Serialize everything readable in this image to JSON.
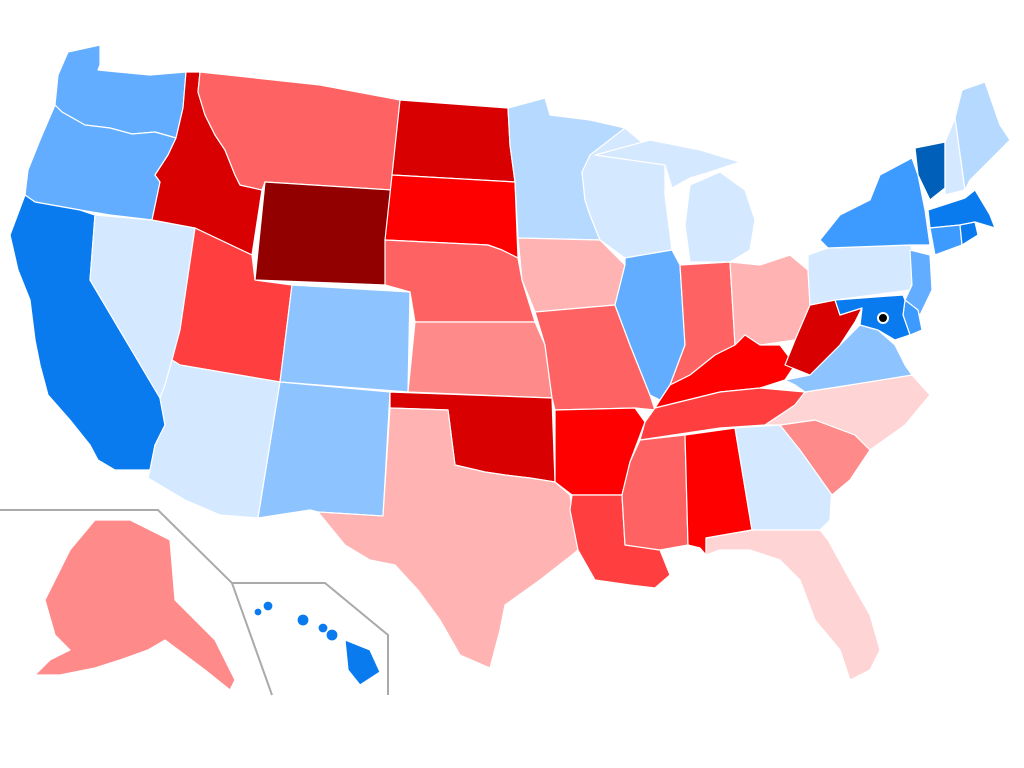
{
  "map": {
    "type": "us-states-choropleth",
    "palette": {
      "dark_blue": "#005fb8",
      "blue": "#0a7bee",
      "medium_blue": "#3d9aff",
      "light_blue": "#62adff",
      "pale_blue": "#8dc3ff",
      "very_pale_blue": "#b6d9ff",
      "faint_blue": "#d4e8ff",
      "faint_red": "#ffd4d4",
      "pale_red": "#ffb3b3",
      "light_red": "#ff8a8a",
      "medium_red": "#ff6262",
      "red": "#ff3f3f",
      "strong_red": "#ff0000",
      "dark_red": "#d80000",
      "darkest_red": "#920000",
      "border": "#ffffff",
      "inset_border": "#aaaaaa",
      "dc_marker": "#000000"
    },
    "states": [
      {
        "id": "WA",
        "color": "#62adff"
      },
      {
        "id": "OR",
        "color": "#62adff"
      },
      {
        "id": "CA",
        "color": "#0a7bee"
      },
      {
        "id": "NV",
        "color": "#d4e8ff"
      },
      {
        "id": "ID",
        "color": "#d80000"
      },
      {
        "id": "MT",
        "color": "#ff6262"
      },
      {
        "id": "WY",
        "color": "#920000"
      },
      {
        "id": "UT",
        "color": "#ff3f3f"
      },
      {
        "id": "AZ",
        "color": "#d4e8ff"
      },
      {
        "id": "CO",
        "color": "#8dc3ff"
      },
      {
        "id": "NM",
        "color": "#8dc3ff"
      },
      {
        "id": "ND",
        "color": "#d80000"
      },
      {
        "id": "SD",
        "color": "#ff0000"
      },
      {
        "id": "NE",
        "color": "#ff6262"
      },
      {
        "id": "KS",
        "color": "#ff8a8a"
      },
      {
        "id": "OK",
        "color": "#d80000"
      },
      {
        "id": "TX",
        "color": "#ffb3b3"
      },
      {
        "id": "MN",
        "color": "#b6d9ff"
      },
      {
        "id": "IA",
        "color": "#ffb3b3"
      },
      {
        "id": "MO",
        "color": "#ff6262"
      },
      {
        "id": "AR",
        "color": "#ff0000"
      },
      {
        "id": "LA",
        "color": "#ff3f3f"
      },
      {
        "id": "WI",
        "color": "#d4e8ff"
      },
      {
        "id": "IL",
        "color": "#62adff"
      },
      {
        "id": "MI",
        "color": "#d4e8ff"
      },
      {
        "id": "IN",
        "color": "#ff6262"
      },
      {
        "id": "OH",
        "color": "#ffb3b3"
      },
      {
        "id": "KY",
        "color": "#ff0000"
      },
      {
        "id": "TN",
        "color": "#ff3f3f"
      },
      {
        "id": "MS",
        "color": "#ff6262"
      },
      {
        "id": "AL",
        "color": "#ff0000"
      },
      {
        "id": "GA",
        "color": "#d4e8ff"
      },
      {
        "id": "FL",
        "color": "#ffd4d4"
      },
      {
        "id": "SC",
        "color": "#ff8a8a"
      },
      {
        "id": "NC",
        "color": "#ffd4d4"
      },
      {
        "id": "VA",
        "color": "#8dc3ff"
      },
      {
        "id": "WV",
        "color": "#d80000"
      },
      {
        "id": "PA",
        "color": "#d4e8ff"
      },
      {
        "id": "NY",
        "color": "#3d9aff"
      },
      {
        "id": "VT",
        "color": "#005fb8"
      },
      {
        "id": "NH",
        "color": "#d4e8ff"
      },
      {
        "id": "ME",
        "color": "#b6d9ff"
      },
      {
        "id": "MA",
        "color": "#0a7bee"
      },
      {
        "id": "CT",
        "color": "#3d9aff"
      },
      {
        "id": "RI",
        "color": "#0a7bee"
      },
      {
        "id": "NJ",
        "color": "#62adff"
      },
      {
        "id": "DE",
        "color": "#3d9aff"
      },
      {
        "id": "MD",
        "color": "#0a7bee"
      },
      {
        "id": "DC",
        "color": "#000000"
      },
      {
        "id": "AK",
        "color": "#ff8a8a"
      },
      {
        "id": "HI",
        "color": "#0a7bee"
      }
    ]
  }
}
